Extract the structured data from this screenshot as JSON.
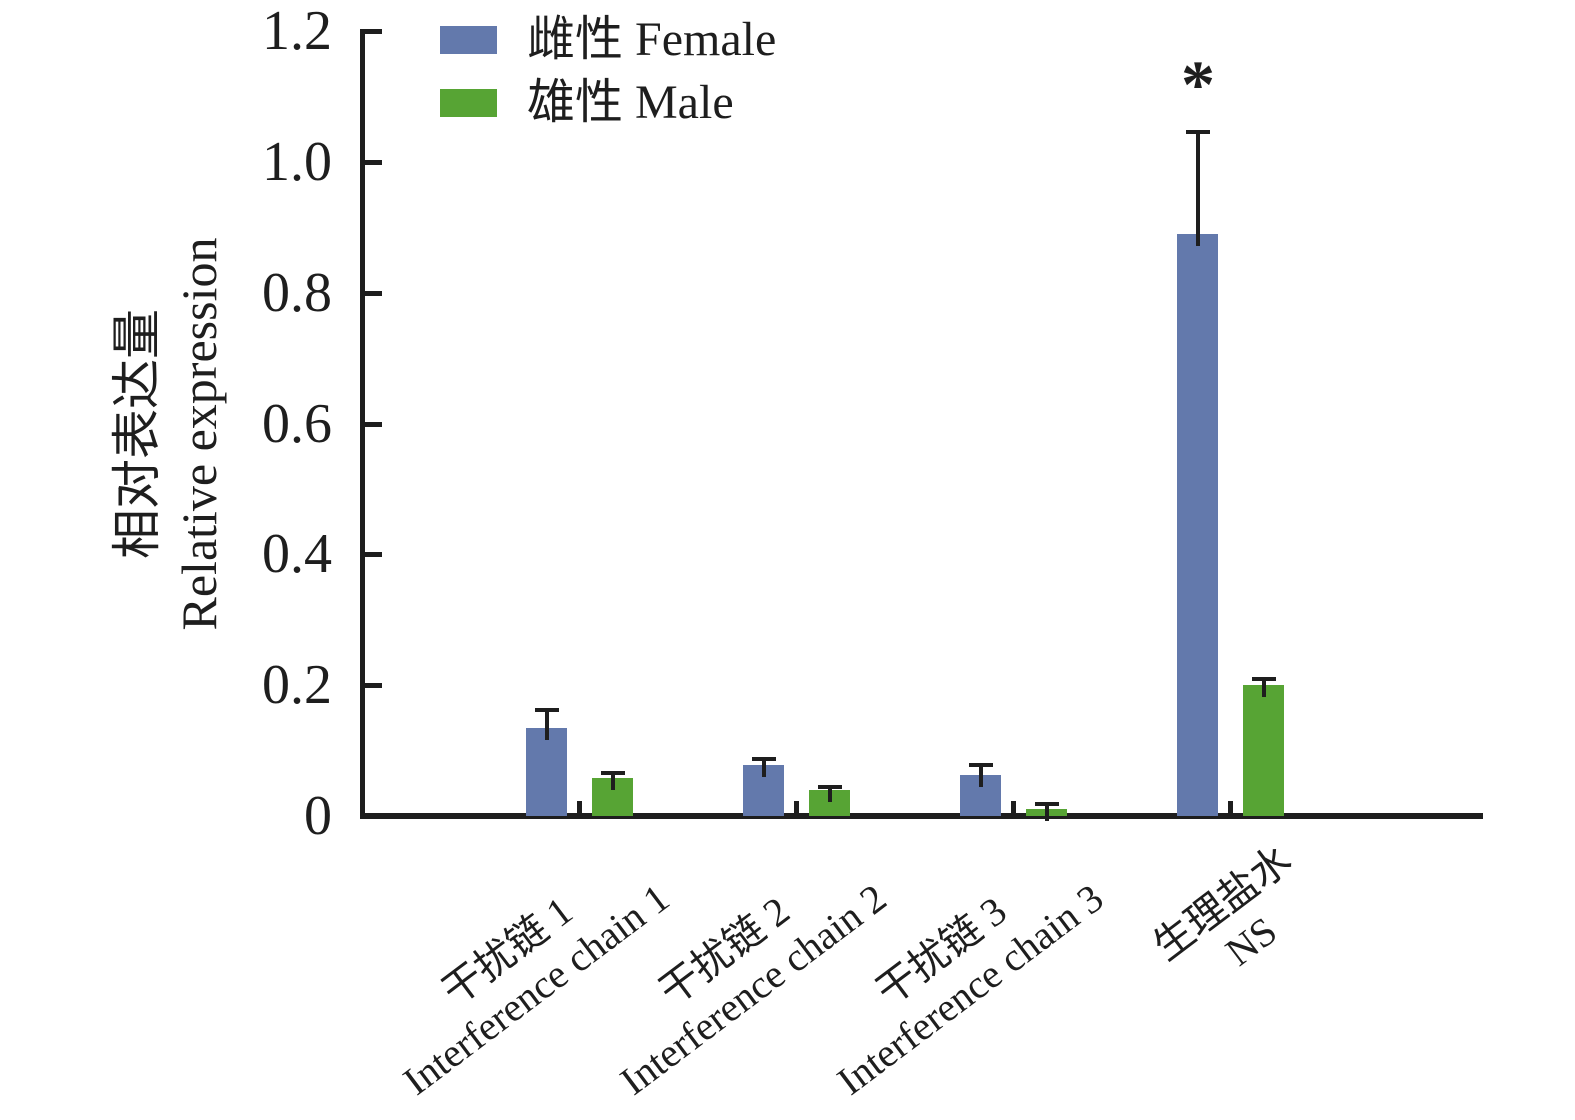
{
  "chart_data": {
    "type": "bar",
    "title": "",
    "ylabel_zh": "相对表达量",
    "ylabel_en": "Relative expression",
    "ylim": [
      0,
      1.2
    ],
    "yticks": [
      0,
      0.2,
      0.4,
      0.6,
      0.8,
      1.0,
      1.2
    ],
    "ytick_labels": [
      "0",
      "0.2",
      "0.4",
      "0.6",
      "0.8",
      "1.0",
      "1.2"
    ],
    "grid": false,
    "legend_position": "top-left-inside",
    "axis_color": "#1e1e1e",
    "categories": [
      {
        "zh": "干扰链 1",
        "en": "Interference chain 1"
      },
      {
        "zh": "干扰链 2",
        "en": "Interference chain 2"
      },
      {
        "zh": "干扰链 3",
        "en": "Interference chain 3"
      },
      {
        "zh": "生理盐水",
        "en": "NS"
      }
    ],
    "series": [
      {
        "name_zh": "雌性",
        "name_en": "Female",
        "label": "雌性 Female",
        "color": "#6379ac",
        "values": [
          0.135,
          0.078,
          0.063,
          0.89
        ],
        "errors": [
          0.027,
          0.009,
          0.015,
          0.155
        ]
      },
      {
        "name_zh": "雄性",
        "name_en": "Male",
        "label": "雄性 Male",
        "color": "#57a434",
        "values": [
          0.058,
          0.04,
          0.011,
          0.2
        ],
        "errors": [
          0.008,
          0.004,
          0.007,
          0.01
        ]
      }
    ],
    "annotations": [
      {
        "text": "*",
        "series_index": 0,
        "category_index": 3,
        "meaning": "significant"
      }
    ]
  }
}
